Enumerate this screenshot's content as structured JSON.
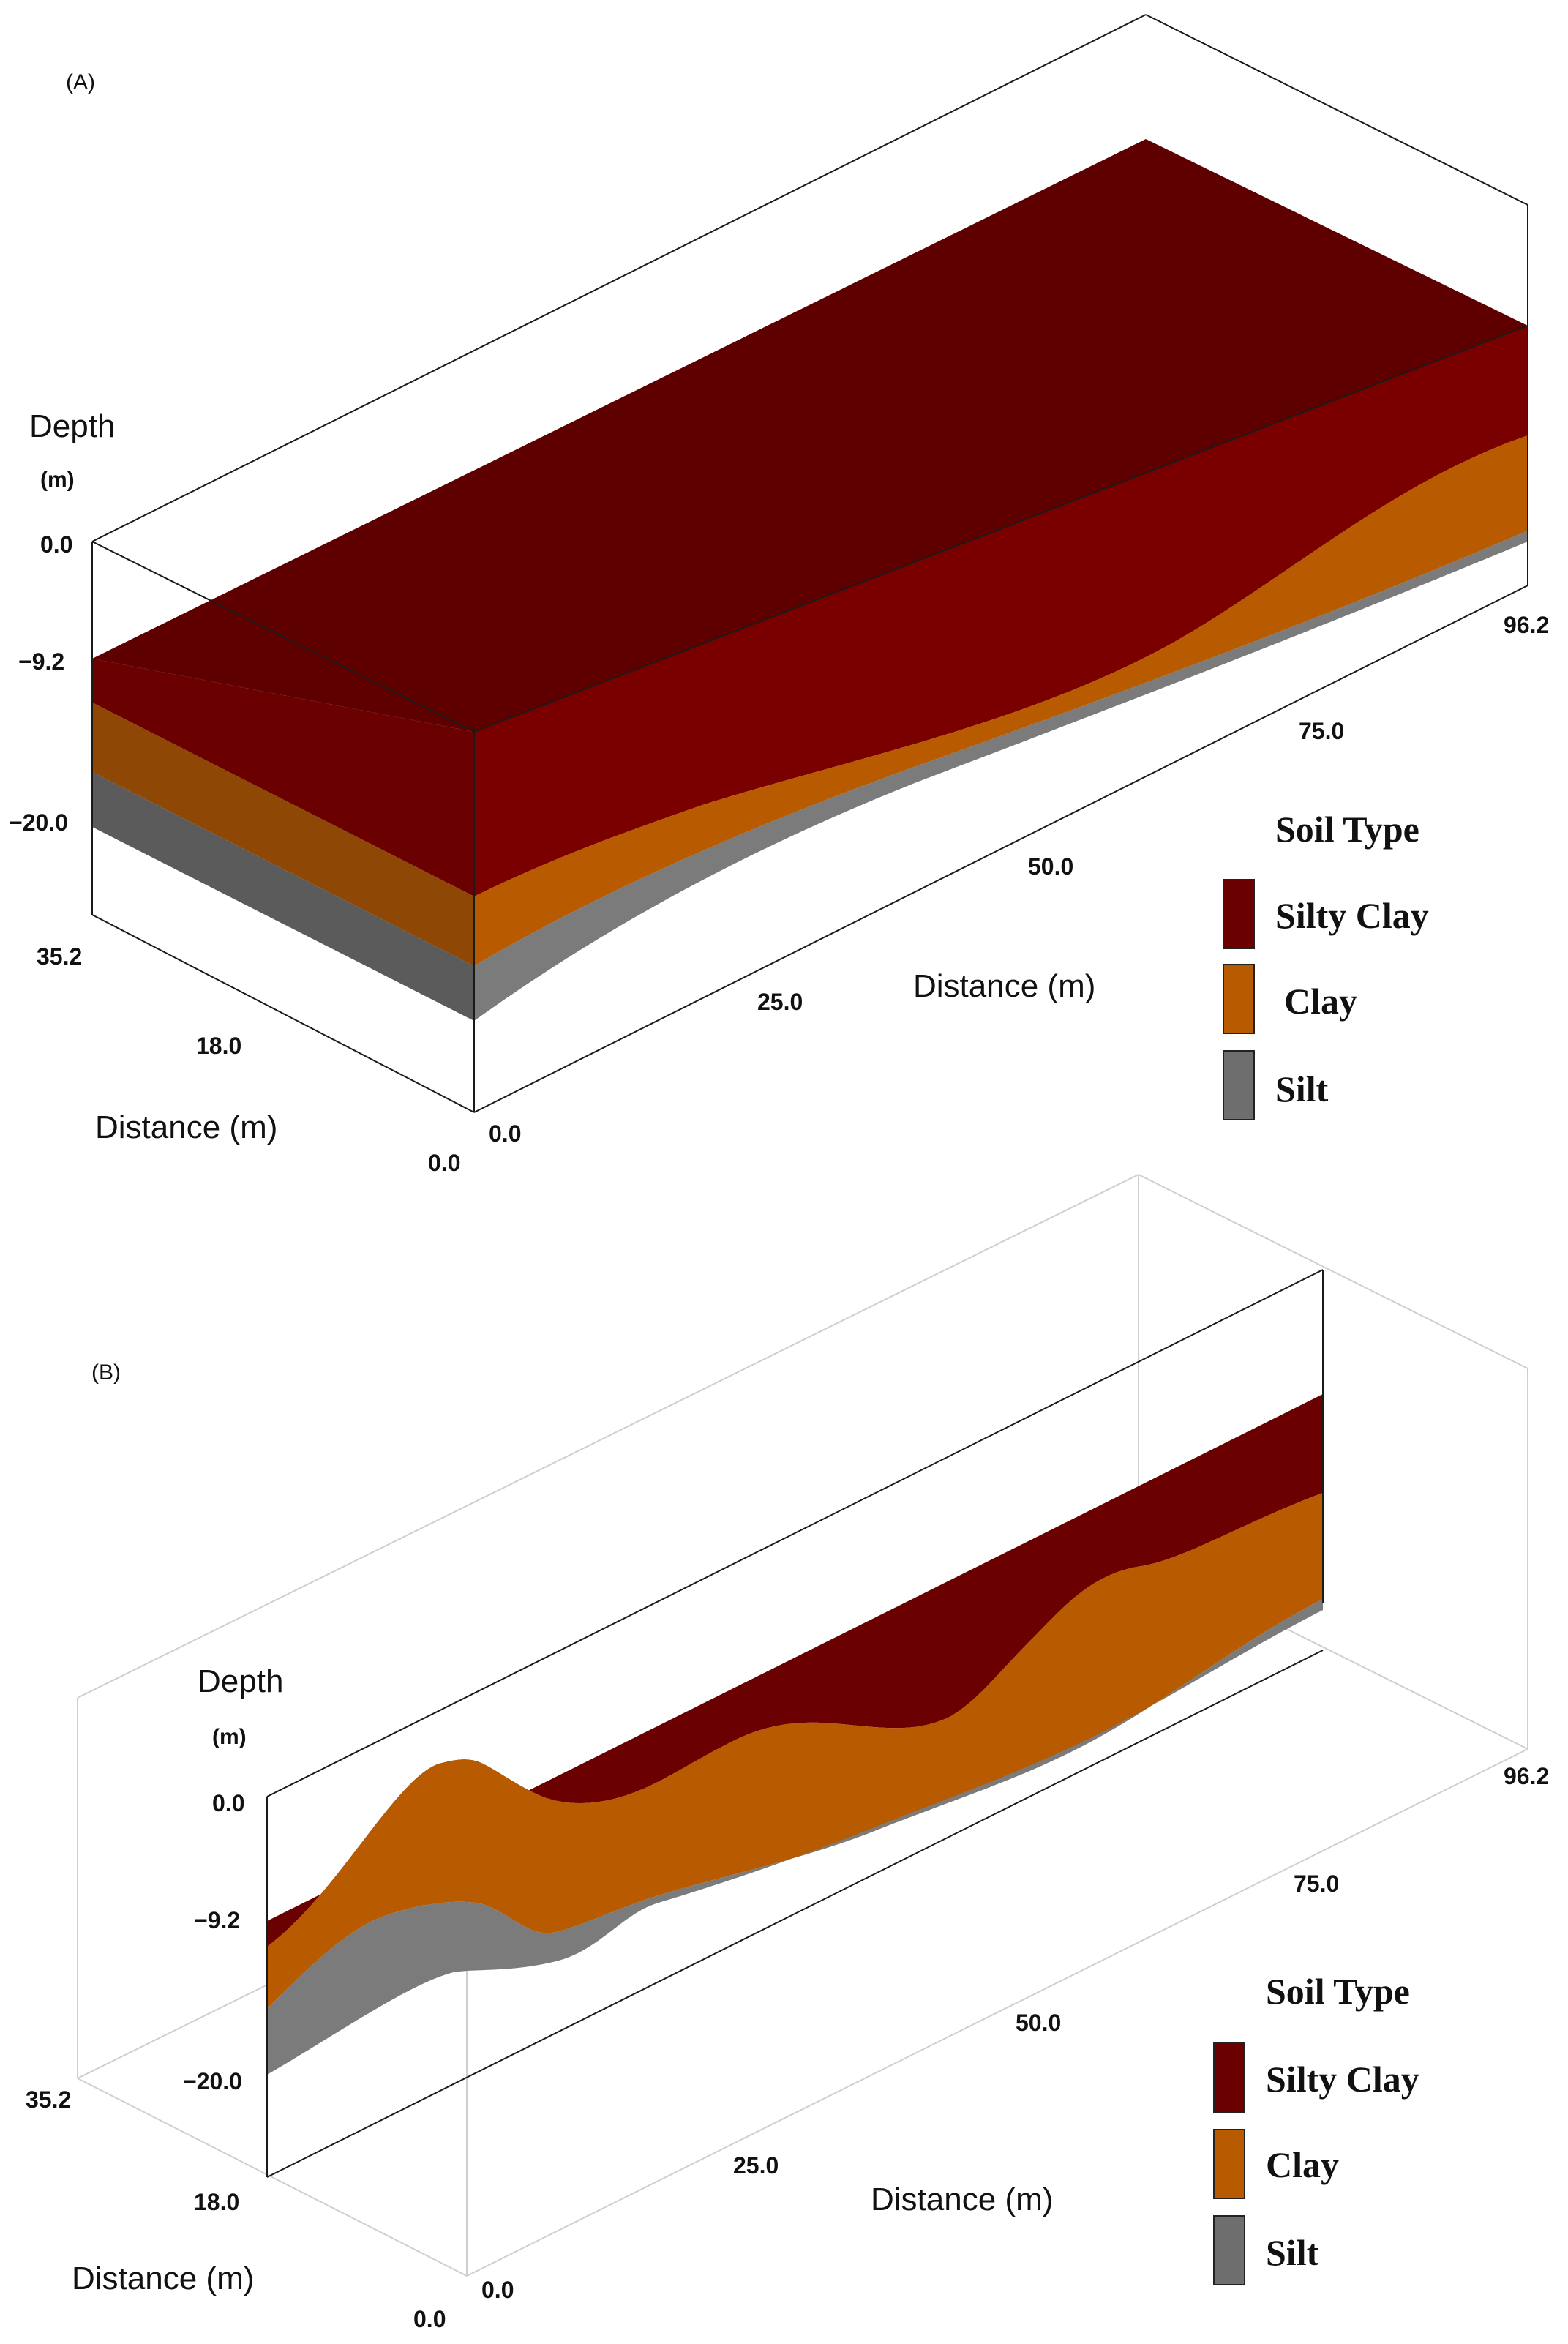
{
  "colors": {
    "silty_clay": "#6b0000",
    "silty_clay_top": "#5e0000",
    "silty_clay_side": "#7a0000",
    "clay": "#b75a00",
    "clay_shaded": "#8f4705",
    "silt": "#7b7b7b",
    "silt_shaded": "#5b5b5b",
    "frame": "#1a1a1a",
    "frame_light": "#cfcfcf"
  },
  "panels": [
    {
      "label": "(A)",
      "depth_title": "Depth",
      "depth_unit": "(m)",
      "depth_ticks": [
        "0.0",
        "−9.2",
        "−20.0"
      ],
      "y_ticks": [
        "35.2",
        "18.0",
        "0.0"
      ],
      "y_axis_title": "Distance (m)",
      "x_ticks": [
        "0.0",
        "25.0",
        "50.0",
        "75.0",
        "96.2"
      ],
      "x_axis_title": "Distance (m)",
      "legend": {
        "title": "Soil Type",
        "items": [
          {
            "label": "Silty Clay",
            "color": "#6b0000"
          },
          {
            "label": "Clay",
            "color": "#b75a00"
          },
          {
            "label": "Silt",
            "color": "#6e6e6e"
          }
        ]
      }
    },
    {
      "label": "(B)",
      "depth_title": "Depth",
      "depth_unit": "(m)",
      "depth_ticks": [
        "0.0",
        "−9.2",
        "−20.0"
      ],
      "y_ticks": [
        "35.2",
        "18.0",
        "0.0"
      ],
      "y_axis_title": "Distance (m)",
      "x_ticks": [
        "0.0",
        "25.0",
        "50.0",
        "75.0",
        "96.2"
      ],
      "x_axis_title": "Distance (m)",
      "legend": {
        "title": "Soil Type",
        "items": [
          {
            "label": "Silty Clay",
            "color": "#6b0000"
          },
          {
            "label": "Clay",
            "color": "#b75a00"
          },
          {
            "label": "Silt",
            "color": "#6e6e6e"
          }
        ]
      }
    }
  ]
}
